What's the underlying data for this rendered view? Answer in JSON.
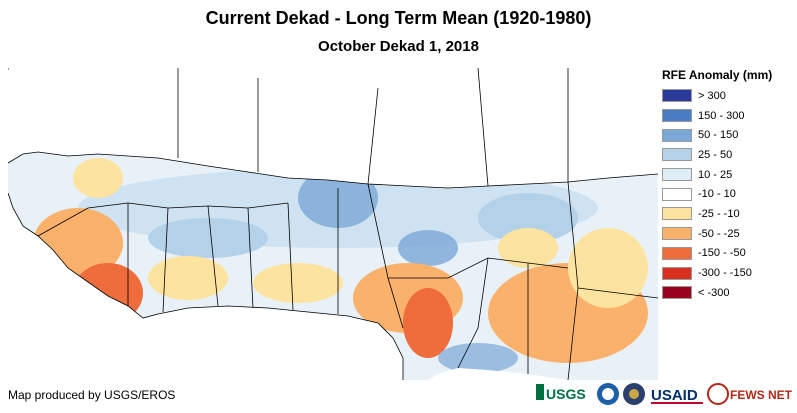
{
  "title": "Current Dekad - Long Term Mean (1920-1980)",
  "subtitle": "October Dekad 1, 2018",
  "legend": {
    "title": "RFE Anomaly (mm)",
    "items": [
      {
        "label": "> 300",
        "color": "#2b3a9a"
      },
      {
        "label": "150 - 300",
        "color": "#4a7cc1"
      },
      {
        "label": "50 - 150",
        "color": "#7aa8d6"
      },
      {
        "label": "25 - 50",
        "color": "#b3d1e9"
      },
      {
        "label": "10 - 25",
        "color": "#dfedf6"
      },
      {
        "label": "-10 - 10",
        "color": "#ffffff"
      },
      {
        "label": "-25 - -10",
        "color": "#fde3a0"
      },
      {
        "label": "-50 - -25",
        "color": "#f9b16c"
      },
      {
        "label": "-150 - -50",
        "color": "#ef6c3d"
      },
      {
        "label": "-300 - -150",
        "color": "#d7301f"
      },
      {
        "label": "< -300",
        "color": "#99001d"
      }
    ]
  },
  "credit": "Map produced by USGS/EROS",
  "logos": [
    {
      "name": "usgs-logo",
      "text": "USGS"
    },
    {
      "name": "noaa-logo",
      "text": ""
    },
    {
      "name": "state-dept-logo",
      "text": ""
    },
    {
      "name": "usaid-logo",
      "text": "USAID"
    },
    {
      "name": "fews-net-logo",
      "text": "FEWS NET"
    }
  ]
}
